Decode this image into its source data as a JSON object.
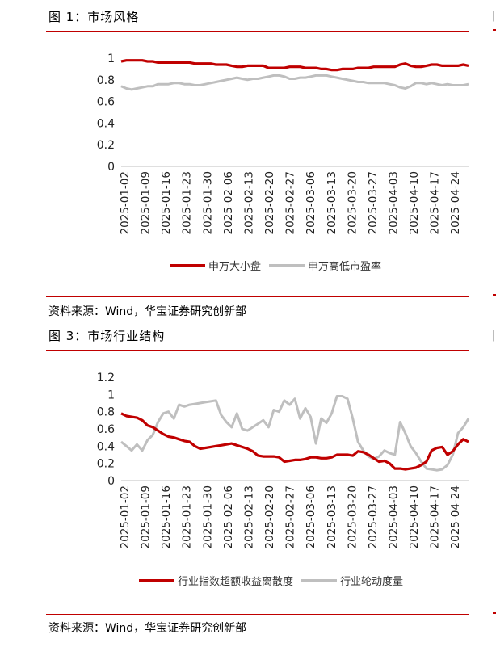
{
  "figure1": {
    "title": "图 1：市场风格",
    "source": "资料来源：Wind，华宝证券研究创新部",
    "chart_data": {
      "type": "line",
      "x_tick_labels": [
        "2025-01-02",
        "2025-01-09",
        "2025-01-16",
        "2025-01-23",
        "2025-01-30",
        "2025-02-06",
        "2025-02-13",
        "2025-02-20",
        "2025-02-27",
        "2025-03-06",
        "2025-03-13",
        "2025-03-20",
        "2025-03-27",
        "2025-04-03",
        "2025-04-10",
        "2025-04-17",
        "2025-04-24"
      ],
      "y_tick_labels": [
        "0",
        "0.2",
        "0.4",
        "0.6",
        "0.8",
        "1"
      ],
      "ylim": [
        0,
        1
      ],
      "legend_position": "bottom",
      "series": [
        {
          "name": "申万大小盘",
          "color": "#c00000",
          "values": [
            0.97,
            0.98,
            0.98,
            0.98,
            0.98,
            0.97,
            0.97,
            0.96,
            0.96,
            0.96,
            0.96,
            0.96,
            0.96,
            0.96,
            0.95,
            0.95,
            0.95,
            0.95,
            0.94,
            0.94,
            0.94,
            0.93,
            0.92,
            0.92,
            0.93,
            0.93,
            0.93,
            0.93,
            0.91,
            0.91,
            0.91,
            0.91,
            0.92,
            0.92,
            0.92,
            0.91,
            0.91,
            0.91,
            0.9,
            0.9,
            0.89,
            0.89,
            0.9,
            0.9,
            0.9,
            0.91,
            0.91,
            0.91,
            0.92,
            0.92,
            0.92,
            0.92,
            0.92,
            0.94,
            0.95,
            0.93,
            0.92,
            0.92,
            0.93,
            0.94,
            0.94,
            0.93,
            0.93,
            0.93,
            0.93,
            0.94,
            0.93
          ]
        },
        {
          "name": "申万高低市盈率",
          "color": "#bfbfbf",
          "values": [
            0.74,
            0.72,
            0.71,
            0.72,
            0.73,
            0.74,
            0.74,
            0.76,
            0.76,
            0.76,
            0.77,
            0.77,
            0.76,
            0.76,
            0.75,
            0.75,
            0.76,
            0.77,
            0.78,
            0.79,
            0.8,
            0.81,
            0.82,
            0.81,
            0.8,
            0.81,
            0.81,
            0.82,
            0.83,
            0.84,
            0.84,
            0.83,
            0.81,
            0.81,
            0.82,
            0.82,
            0.83,
            0.84,
            0.84,
            0.84,
            0.83,
            0.82,
            0.81,
            0.8,
            0.79,
            0.78,
            0.78,
            0.77,
            0.77,
            0.77,
            0.77,
            0.76,
            0.75,
            0.73,
            0.72,
            0.74,
            0.77,
            0.77,
            0.76,
            0.77,
            0.76,
            0.75,
            0.76,
            0.75,
            0.75,
            0.75,
            0.76
          ]
        }
      ]
    }
  },
  "figure3": {
    "title": "图 3：市场行业结构",
    "source": "资料来源：Wind，华宝证券研究创新部",
    "chart_data": {
      "type": "line",
      "x_tick_labels": [
        "2025-01-02",
        "2025-01-09",
        "2025-01-16",
        "2025-01-23",
        "2025-01-30",
        "2025-02-06",
        "2025-02-13",
        "2025-02-20",
        "2025-02-27",
        "2025-03-06",
        "2025-03-13",
        "2025-03-20",
        "2025-03-27",
        "2025-04-03",
        "2025-04-10",
        "2025-04-17",
        "2025-04-24"
      ],
      "y_tick_labels": [
        "0",
        "0.2",
        "0.4",
        "0.6",
        "0.8",
        "1",
        "1.2"
      ],
      "ylim": [
        0,
        1.2
      ],
      "legend_position": "bottom",
      "series": [
        {
          "name": "行业指数超额收益离散度",
          "color": "#c00000",
          "values": [
            0.78,
            0.75,
            0.74,
            0.73,
            0.7,
            0.64,
            0.62,
            0.58,
            0.54,
            0.51,
            0.5,
            0.48,
            0.46,
            0.45,
            0.4,
            0.37,
            0.38,
            0.39,
            0.4,
            0.41,
            0.42,
            0.43,
            0.41,
            0.39,
            0.37,
            0.34,
            0.29,
            0.28,
            0.28,
            0.28,
            0.27,
            0.22,
            0.23,
            0.24,
            0.24,
            0.25,
            0.27,
            0.27,
            0.26,
            0.26,
            0.27,
            0.3,
            0.3,
            0.3,
            0.29,
            0.34,
            0.33,
            0.3,
            0.26,
            0.22,
            0.23,
            0.2,
            0.14,
            0.14,
            0.13,
            0.14,
            0.15,
            0.18,
            0.22,
            0.35,
            0.38,
            0.39,
            0.3,
            0.34,
            0.42,
            0.48,
            0.45
          ]
        },
        {
          "name": "行业轮动度量",
          "color": "#bfbfbf",
          "values": [
            0.45,
            0.4,
            0.35,
            0.42,
            0.35,
            0.47,
            0.53,
            0.68,
            0.78,
            0.8,
            0.72,
            0.88,
            0.86,
            0.88,
            0.89,
            0.9,
            0.91,
            0.92,
            0.93,
            0.76,
            0.68,
            0.62,
            0.78,
            0.6,
            0.58,
            0.62,
            0.66,
            0.7,
            0.62,
            0.82,
            0.8,
            0.93,
            0.88,
            0.95,
            0.72,
            0.84,
            0.74,
            0.43,
            0.72,
            0.67,
            0.78,
            0.98,
            0.98,
            0.95,
            0.72,
            0.45,
            0.35,
            0.28,
            0.25,
            0.28,
            0.35,
            0.32,
            0.3,
            0.68,
            0.55,
            0.4,
            0.32,
            0.22,
            0.14,
            0.13,
            0.12,
            0.13,
            0.18,
            0.3,
            0.55,
            0.62,
            0.72
          ]
        }
      ]
    }
  }
}
